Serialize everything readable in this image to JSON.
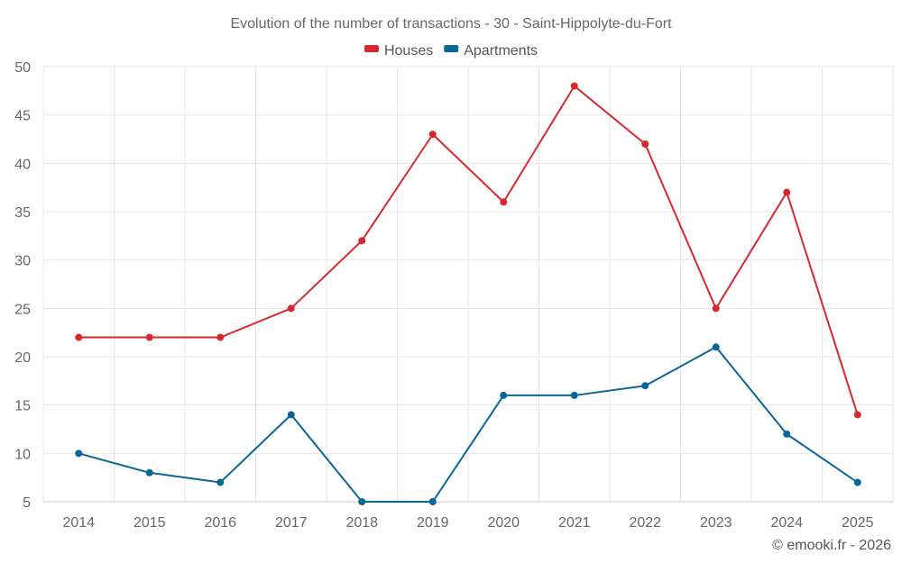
{
  "chart_data": {
    "type": "line",
    "title": "Evolution of the number of transactions - 30 - Saint-Hippolyte-du-Fort",
    "xlabel": "",
    "ylabel": "",
    "categories": [
      "2014",
      "2015",
      "2016",
      "2017",
      "2018",
      "2019",
      "2020",
      "2021",
      "2022",
      "2023",
      "2024",
      "2025"
    ],
    "series": [
      {
        "name": "Houses",
        "color": "#d7282f",
        "values": [
          22,
          22,
          22,
          25,
          32,
          43,
          36,
          48,
          42,
          25,
          37,
          14
        ]
      },
      {
        "name": "Apartments",
        "color": "#0a6699",
        "values": [
          10,
          8,
          7,
          14,
          5,
          5,
          16,
          16,
          17,
          21,
          12,
          7
        ]
      }
    ],
    "ylim": [
      5,
      50
    ],
    "yticks": [
      5,
      10,
      15,
      20,
      25,
      30,
      35,
      40,
      45,
      50
    ],
    "grid": true,
    "legend_position": "top-center"
  },
  "credit": "© emooki.fr - 2026"
}
